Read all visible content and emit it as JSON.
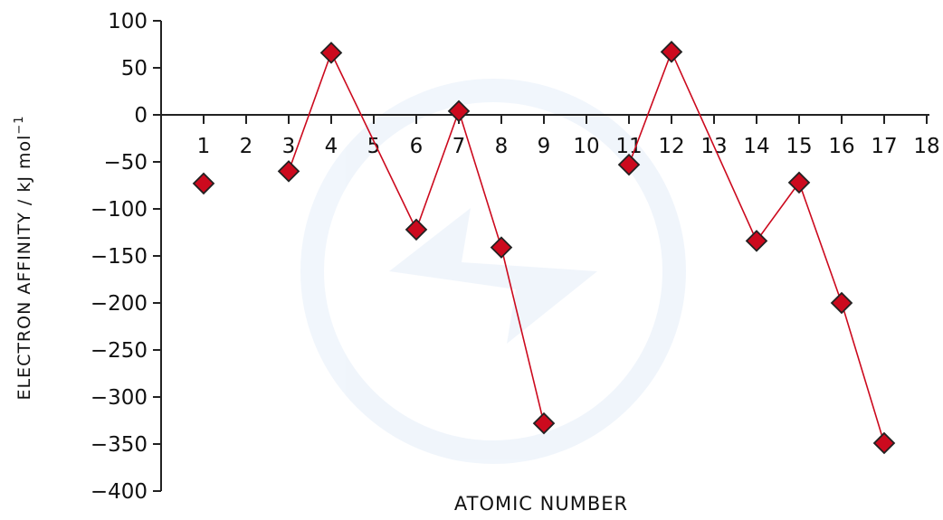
{
  "chart_data": {
    "type": "line",
    "title": "",
    "xlabel": "ATOMIC  NUMBER",
    "ylabel": {
      "main": "ELECTRON  AFFINITY / kJ mol",
      "superscript": "−1"
    },
    "ylim": [
      -400,
      100
    ],
    "xlim": [
      0,
      18
    ],
    "yticks": [
      100,
      50,
      0,
      -50,
      -100,
      -150,
      -200,
      -250,
      -300,
      -350,
      -400
    ],
    "ytick_labels": [
      "100",
      "50",
      "0",
      "−50",
      "−100",
      "−150",
      "−200",
      "−250",
      "−300",
      "−350",
      "−400"
    ],
    "xticks": [
      1,
      2,
      3,
      4,
      5,
      6,
      7,
      8,
      9,
      10,
      11,
      12,
      13,
      14,
      15,
      16,
      17,
      18
    ],
    "xtick_labels": [
      "1",
      "2",
      "3",
      "4",
      "5",
      "6",
      "7",
      "8",
      "9",
      "10",
      "11",
      "12",
      "13",
      "14",
      "15",
      "16",
      "17",
      "18"
    ],
    "x_axis_at_y": 0,
    "grid": false,
    "series_color": "#cc0a1e",
    "marker_color": "#cc0a1e",
    "marker_edge_color": "#222222",
    "line_color": "#cc0a1e",
    "marker": "diamond",
    "series": [
      {
        "points": [
          {
            "x": 1,
            "y": -73
          },
          {
            "x": 3,
            "y": -60
          },
          {
            "x": 4,
            "y": 66
          },
          {
            "x": 6,
            "y": -122
          },
          {
            "x": 7,
            "y": 4
          },
          {
            "x": 8,
            "y": -141
          },
          {
            "x": 9,
            "y": -328
          },
          {
            "x": 11,
            "y": -53
          },
          {
            "x": 12,
            "y": 67
          },
          {
            "x": 14,
            "y": -134
          },
          {
            "x": 15,
            "y": -72
          },
          {
            "x": 16,
            "y": -200
          },
          {
            "x": 17,
            "y": -349
          }
        ],
        "segments": [
          [
            3,
            4,
            6,
            7,
            8,
            9
          ],
          [
            11,
            12,
            14,
            15,
            16,
            17
          ]
        ]
      }
    ]
  }
}
